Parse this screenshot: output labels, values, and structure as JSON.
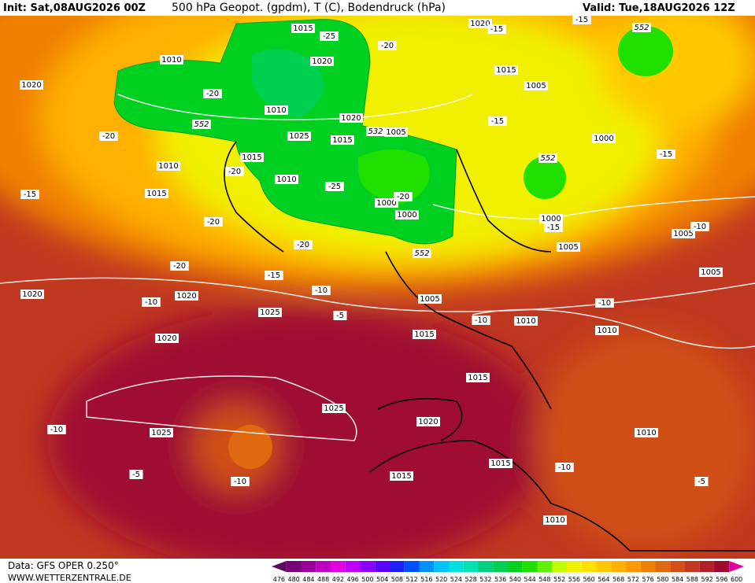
{
  "header": {
    "init": "Init: Sat,08AUG2026 00Z",
    "title": "500 hPa Geopot. (gpdm), T (C), Bodendruck (hPa)",
    "valid": "Valid: Tue,18AUG2026 12Z"
  },
  "footer": {
    "data": "Data: GFS OPER 0.250°",
    "site": "WWW.WETTERZENTRALE.DE"
  },
  "colorbar": {
    "values": [
      476,
      480,
      484,
      488,
      492,
      496,
      500,
      504,
      508,
      512,
      516,
      520,
      524,
      528,
      532,
      536,
      540,
      544,
      548,
      552,
      556,
      560,
      564,
      568,
      572,
      576,
      580,
      584,
      588,
      592,
      596,
      600
    ],
    "colors": [
      "#5a0a5a",
      "#780078",
      "#9a009a",
      "#c000c0",
      "#e000e0",
      "#c000ff",
      "#8a00ff",
      "#5a00ff",
      "#2020ff",
      "#0050ff",
      "#0090ff",
      "#00c0ff",
      "#00e0e0",
      "#00e0b0",
      "#00d080",
      "#00d050",
      "#00d020",
      "#20e000",
      "#60f000",
      "#c0ff00",
      "#f0f000",
      "#ffe000",
      "#ffc800",
      "#ffb000",
      "#ff9800",
      "#f08000",
      "#e06810",
      "#d05018",
      "#c03820",
      "#b02028",
      "#a00830",
      "#e000a0"
    ]
  },
  "isobar_labels": [
    "1015",
    "1010",
    "1020",
    "1020",
    "1010",
    "1020",
    "1025",
    "1015",
    "1015",
    "1010",
    "1005",
    "1010",
    "1015",
    "1000",
    "1000",
    "1020",
    "1015",
    "1005",
    "1000",
    "1000",
    "1005",
    "1005",
    "1005",
    "1020",
    "1020",
    "1025",
    "1005",
    "1010",
    "1010",
    "1020",
    "1015",
    "1015",
    "1025",
    "1020",
    "1025",
    "1010",
    "1015",
    "1015",
    "1010"
  ],
  "temperature_labels": [
    "-25",
    "-20",
    "-15",
    "-15",
    "-20",
    "-20",
    "-15",
    "-15",
    "-20",
    "-25",
    "-20",
    "-15",
    "-20",
    "-15",
    "-10",
    "-20",
    "-20",
    "-15",
    "-10",
    "-10",
    "-10",
    "-5",
    "-10",
    "-10",
    "-5",
    "-10",
    "-10",
    "-5"
  ],
  "height_labels": [
    "552",
    "552",
    "532",
    "552",
    "552"
  ]
}
